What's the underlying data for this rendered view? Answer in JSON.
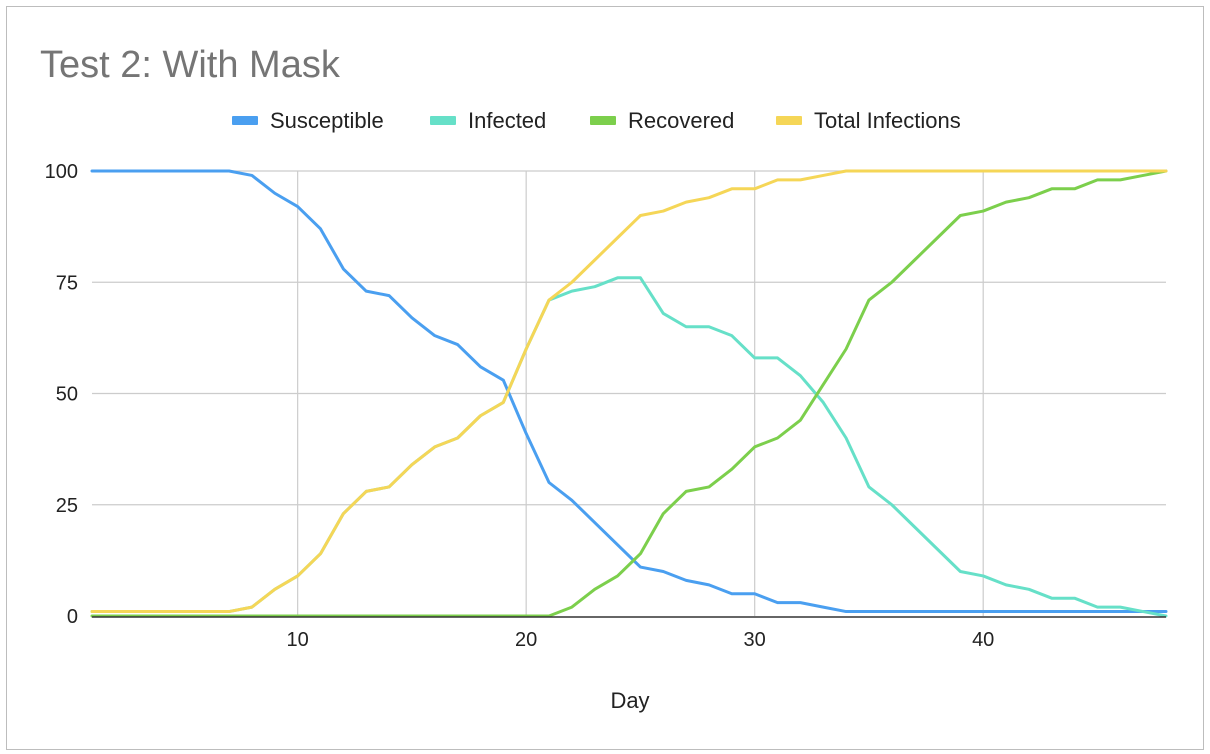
{
  "chart_data": {
    "type": "line",
    "title": "Test 2: With Mask",
    "xlabel": "Day",
    "ylabel": "",
    "xlim": [
      1,
      48
    ],
    "ylim": [
      0,
      100
    ],
    "x_ticks": [
      10,
      20,
      30,
      40
    ],
    "y_ticks": [
      0,
      25,
      50,
      75,
      100
    ],
    "grid": true,
    "legend_position": "top",
    "x": [
      1,
      2,
      3,
      4,
      5,
      6,
      7,
      8,
      9,
      10,
      11,
      12,
      13,
      14,
      15,
      16,
      17,
      18,
      19,
      20,
      21,
      22,
      23,
      24,
      25,
      26,
      27,
      28,
      29,
      30,
      31,
      32,
      33,
      34,
      35,
      36,
      37,
      38,
      39,
      40,
      41,
      42,
      43,
      44,
      45,
      46,
      47,
      48
    ],
    "series": [
      {
        "name": "Susceptible",
        "color": "#4a9ff0",
        "values": [
          100,
          100,
          100,
          100,
          100,
          100,
          100,
          99,
          95,
          92,
          87,
          78,
          73,
          72,
          67,
          63,
          61,
          56,
          53,
          41,
          30,
          26,
          21,
          16,
          11,
          10,
          8,
          7,
          5,
          5,
          3,
          3,
          2,
          1,
          1,
          1,
          1,
          1,
          1,
          1,
          1,
          1,
          1,
          1,
          1,
          1,
          1,
          1
        ]
      },
      {
        "name": "Infected",
        "color": "#66e0c8",
        "values": [
          1,
          1,
          1,
          1,
          1,
          1,
          1,
          2,
          6,
          9,
          14,
          23,
          28,
          29,
          34,
          38,
          40,
          45,
          48,
          60,
          71,
          73,
          74,
          76,
          76,
          68,
          65,
          65,
          63,
          58,
          58,
          54,
          48,
          40,
          29,
          25,
          20,
          15,
          10,
          9,
          7,
          6,
          4,
          4,
          2,
          2,
          1,
          0
        ]
      },
      {
        "name": "Recovered",
        "color": "#7ccf4c",
        "values": [
          0,
          0,
          0,
          0,
          0,
          0,
          0,
          0,
          0,
          0,
          0,
          0,
          0,
          0,
          0,
          0,
          0,
          0,
          0,
          0,
          0,
          2,
          6,
          9,
          14,
          23,
          28,
          29,
          33,
          38,
          40,
          44,
          52,
          60,
          71,
          75,
          80,
          85,
          90,
          91,
          93,
          94,
          96,
          96,
          98,
          98,
          99,
          100
        ]
      },
      {
        "name": "Total Infections",
        "color": "#f5d657",
        "values": [
          1,
          1,
          1,
          1,
          1,
          1,
          1,
          2,
          6,
          9,
          14,
          23,
          28,
          29,
          34,
          38,
          40,
          45,
          48,
          60,
          71,
          75,
          80,
          85,
          90,
          91,
          93,
          94,
          96,
          96,
          98,
          98,
          99,
          100,
          100,
          100,
          100,
          100,
          100,
          100,
          100,
          100,
          100,
          100,
          100,
          100,
          100,
          100
        ]
      }
    ]
  }
}
